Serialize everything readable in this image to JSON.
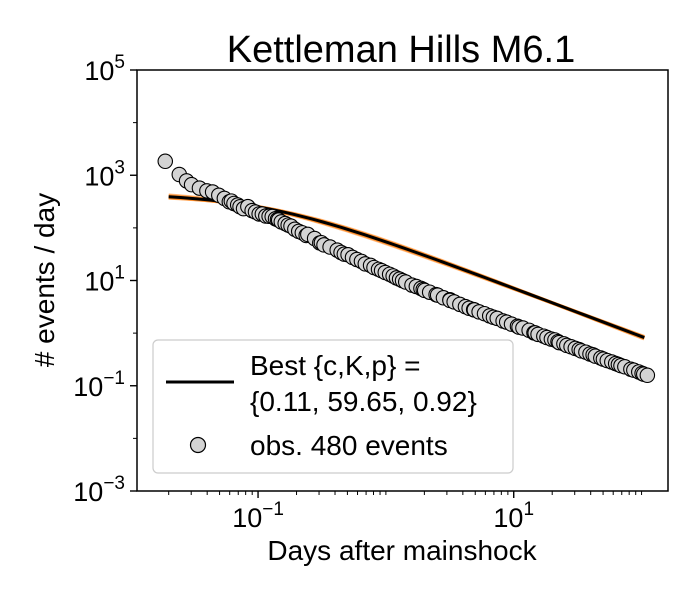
{
  "chart_data": {
    "type": "scatter",
    "title": "Kettleman Hills M6.1",
    "xlabel": "Days after mainshock",
    "ylabel": "# events / day",
    "x_scale": "log",
    "y_scale": "log",
    "xlim": [
      0.0113,
      161
    ],
    "ylim": [
      0.001,
      100000
    ],
    "x_ticks": [
      {
        "value": 0.1,
        "base": "10",
        "exp": "−1"
      },
      {
        "value": 10,
        "base": "10",
        "exp": "1"
      }
    ],
    "y_ticks": [
      {
        "value": 0.001,
        "base": "10",
        "exp": "−3"
      },
      {
        "value": 0.1,
        "base": "10",
        "exp": "−1"
      },
      {
        "value": 10,
        "base": "10",
        "exp": "1"
      },
      {
        "value": 1000,
        "base": "10",
        "exp": "3"
      },
      {
        "value": 100000,
        "base": "10",
        "exp": "5"
      }
    ],
    "grid": false,
    "legend_placement": "lower-left",
    "legend": {
      "fit_label_line1": "Best {c,K,p} =",
      "fit_label_line2": "{0.11, 59.65, 0.92}",
      "obs_label": "obs. 480 events"
    },
    "fit": {
      "name": "Best {c,K,p} = {0.11, 59.65, 0.92}",
      "model": "omori",
      "c": 0.11,
      "K": 59.65,
      "p": 0.92,
      "x_range": [
        0.02,
        105
      ],
      "color": "#000000"
    },
    "ensemble": {
      "color": "#ff7f0e",
      "samples": [
        {
          "c": 0.09,
          "K": 56.0,
          "p": 0.9
        },
        {
          "c": 0.13,
          "K": 63.0,
          "p": 0.94
        },
        {
          "c": 0.1,
          "K": 57.5,
          "p": 0.91
        },
        {
          "c": 0.12,
          "K": 61.5,
          "p": 0.93
        },
        {
          "c": 0.08,
          "K": 54.0,
          "p": 0.89
        },
        {
          "c": 0.14,
          "K": 65.0,
          "p": 0.95
        },
        {
          "c": 0.11,
          "K": 58.5,
          "p": 0.915
        },
        {
          "c": 0.115,
          "K": 60.5,
          "p": 0.925
        }
      ]
    },
    "observations": {
      "name": "obs. 480 events",
      "fill": "#d3d3d3",
      "x": [
        0.0188,
        0.0242,
        0.0276,
        0.0302,
        0.0348,
        0.0398,
        0.0441,
        0.0493,
        0.0545,
        0.0596,
        0.0618,
        0.0648,
        0.0693,
        0.0723,
        0.077,
        0.0832,
        0.0899,
        0.0955,
        0.102,
        0.108,
        0.115,
        0.122,
        0.129,
        0.137,
        0.142,
        0.145,
        0.152,
        0.163,
        0.172,
        0.181,
        0.194,
        0.208,
        0.222,
        0.238,
        0.245,
        0.277,
        0.304,
        0.313,
        0.328,
        0.366,
        0.416,
        0.446,
        0.473,
        0.506,
        0.548,
        0.593,
        0.644,
        0.69,
        0.759,
        0.807,
        0.876,
        0.925,
        0.989,
        1.07,
        1.14,
        1.21,
        1.28,
        1.35,
        1.43,
        1.6,
        1.73,
        1.88,
        1.96,
        2.01,
        2.2,
        2.47,
        2.54,
        2.82,
        3.17,
        3.17,
        3.42,
        3.79,
        4.19,
        4.48,
        4.86,
        4.92,
        5.36,
        5.91,
        6.49,
        6.94,
        7.43,
        8.26,
        8.81,
        9.61,
        10.7,
        11.0,
        11.8,
        13.2,
        14.4,
        14.7,
        15.5,
        17.2,
        18.2,
        19.7,
        21.0,
        22.2,
        22.7,
        24.7,
        26.0,
        28.1,
        30.3,
        32.5,
        33.8,
        36.7,
        39.5,
        41.8,
        43.5,
        48.0,
        50.3,
        53.9,
        58.5,
        62.7,
        65.9,
        69.0,
        74.0,
        82.5,
        87.0,
        95.1,
        101,
        104,
        111
      ],
      "y": [
        1841,
        1034,
        783,
        662,
        570,
        505,
        481,
        417,
        363,
        313,
        323,
        291,
        272,
        252,
        232,
        253,
        213,
        200,
        184,
        183,
        168,
        166,
        164,
        149,
        144,
        141,
        130,
        121,
        113,
        108,
        94.2,
        85.7,
        80.5,
        71.8,
        75.2,
        62.8,
        51.7,
        52.3,
        47.5,
        43.2,
        37.8,
        34.1,
        31.7,
        30.9,
        27.5,
        25.1,
        23.1,
        20.7,
        19.4,
        17.6,
        16.3,
        15.4,
        14.2,
        13.1,
        12.2,
        11.2,
        10.6,
        9.96,
        9.37,
        8.18,
        7.7,
        7.07,
        6.74,
        6.48,
        5.99,
        5.39,
        5.28,
        4.69,
        4.31,
        4.19,
        3.92,
        3.52,
        3.18,
        2.97,
        2.8,
        2.77,
        2.53,
        2.34,
        2.13,
        2.0,
        1.91,
        1.7,
        1.62,
        1.48,
        1.35,
        1.3,
        1.25,
        1.13,
        1.01,
        1.01,
        0.948,
        0.874,
        0.826,
        0.768,
        0.742,
        0.688,
        0.661,
        0.626,
        0.584,
        0.55,
        0.512,
        0.486,
        0.459,
        0.434,
        0.401,
        0.386,
        0.365,
        0.336,
        0.32,
        0.301,
        0.283,
        0.264,
        0.253,
        0.241,
        0.229,
        0.206,
        0.198,
        0.183,
        0.172,
        0.166,
        0.158
      ]
    }
  }
}
